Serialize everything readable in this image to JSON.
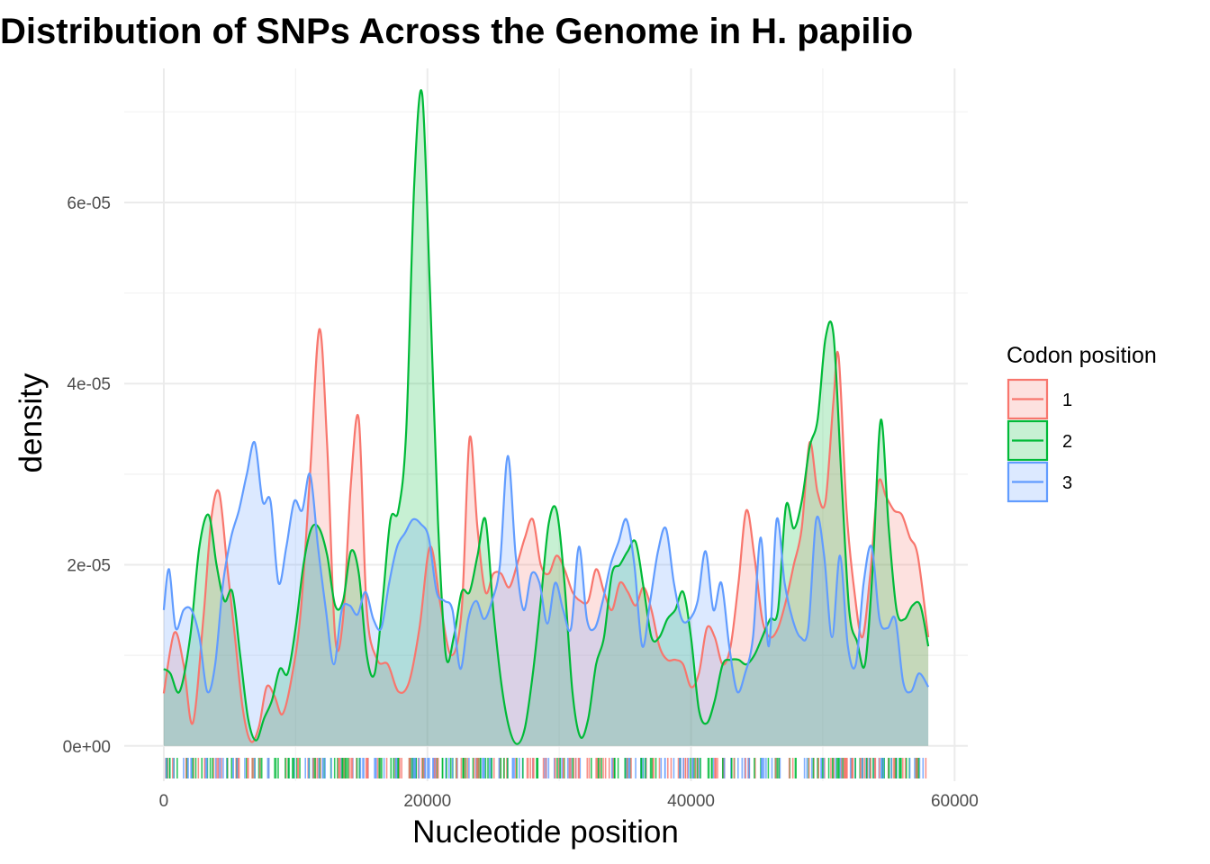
{
  "chart_data": {
    "type": "area",
    "title": "Distribution of SNPs Across the Genome in H. papilio",
    "xlabel": "Nucleotide position",
    "ylabel": "density",
    "xlim": [
      -3000,
      61000
    ],
    "ylim": [
      -3.9e-06,
      7.48e-05
    ],
    "x_ticks": [
      0,
      20000,
      40000,
      60000
    ],
    "x_tick_labels": [
      "0",
      "20000",
      "40000",
      "60000"
    ],
    "y_ticks": [
      0,
      2e-05,
      4e-05,
      6e-05
    ],
    "y_tick_labels": [
      "0e+00",
      "2e-05",
      "4e-05",
      "6e-05"
    ],
    "grid": true,
    "rug": true,
    "legend": {
      "title": "Codon position",
      "placement": "right",
      "entries": [
        "1",
        "2",
        "3"
      ]
    },
    "series": [
      {
        "name": "1",
        "color": "#F8766D",
        "x": [
          0,
          800,
          1500,
          2200,
          3000,
          3600,
          4200,
          4800,
          5400,
          6000,
          6600,
          7200,
          7800,
          8400,
          9000,
          9700,
          10400,
          11100,
          11800,
          12400,
          13000,
          13600,
          14200,
          14800,
          15400,
          16200,
          17000,
          17800,
          18600,
          19400,
          20200,
          21000,
          21800,
          22600,
          23200,
          23800,
          24400,
          25000,
          25600,
          26200,
          26800,
          27400,
          28000,
          28600,
          29200,
          29800,
          30400,
          31000,
          31600,
          32200,
          32800,
          33400,
          34000,
          34600,
          35200,
          35800,
          36400,
          37000,
          37600,
          38200,
          38800,
          39400,
          40000,
          40600,
          41200,
          41800,
          42400,
          43000,
          43600,
          44200,
          44800,
          45400,
          46000,
          46600,
          47200,
          47800,
          48400,
          49000,
          49600,
          50200,
          50800,
          51200,
          51800,
          52400,
          53000,
          53600,
          54200,
          54800,
          55400,
          56000,
          56600,
          57200,
          58000
        ],
        "y": [
          5.8e-06,
          1.25e-05,
          9e-06,
          2.5e-06,
          1.4e-05,
          2.5e-05,
          2.8e-05,
          2e-05,
          1.2e-05,
          4e-06,
          5e-07,
          2e-06,
          6.5e-06,
          5.5e-06,
          3.5e-06,
          7.5e-06,
          1.5e-05,
          3e-05,
          4.6e-05,
          3.3e-05,
          1.2e-05,
          1.4e-05,
          2.9e-05,
          3.6e-05,
          1.5e-05,
          9.5e-06,
          9e-06,
          6e-06,
          7e-06,
          1.3e-05,
          2.2e-05,
          1.55e-05,
          1e-05,
          1.5e-05,
          3.4e-05,
          2.4e-05,
          1.7e-05,
          1.9e-05,
          1.9e-05,
          1.75e-05,
          2e-05,
          2.3e-05,
          2.5e-05,
          2e-05,
          1.9e-05,
          2.1e-05,
          1.95e-05,
          1.7e-05,
          1.6e-05,
          1.6e-05,
          1.95e-05,
          1.7e-05,
          1.5e-05,
          1.8e-05,
          1.7e-05,
          1.55e-05,
          1.75e-05,
          1.5e-05,
          1.1e-05,
          9.5e-06,
          9.5e-06,
          9e-06,
          6.5e-06,
          8e-06,
          1.3e-05,
          1.2e-05,
          9e-06,
          1.1e-05,
          1.8e-05,
          2.6e-05,
          2.1e-05,
          1.4e-05,
          1.2e-05,
          1.3e-05,
          1.6e-05,
          2e-05,
          2.4e-05,
          3.35e-05,
          2.8e-05,
          2.7e-05,
          3.8e-05,
          4.3e-05,
          2.6e-05,
          1.7e-05,
          1.2e-05,
          1.9e-05,
          2.9e-05,
          2.75e-05,
          2.6e-05,
          2.55e-05,
          2.3e-05,
          2.1e-05,
          1.2e-05
        ]
      },
      {
        "name": "2",
        "color": "#00BA38",
        "x": [
          0,
          500,
          1200,
          2000,
          2700,
          3400,
          4000,
          4600,
          5200,
          5800,
          6400,
          7000,
          7600,
          8200,
          8800,
          9400,
          10000,
          10600,
          11200,
          11800,
          12400,
          13000,
          13600,
          14200,
          14800,
          15400,
          16000,
          16600,
          17200,
          17800,
          18400,
          19000,
          19600,
          20200,
          20800,
          21400,
          22000,
          22600,
          23200,
          23800,
          24400,
          25000,
          25600,
          26200,
          26800,
          27400,
          28000,
          28600,
          29200,
          29800,
          30400,
          31000,
          31600,
          32200,
          32800,
          33400,
          34000,
          34600,
          35200,
          35800,
          36400,
          37000,
          37600,
          38200,
          38800,
          39400,
          40000,
          40600,
          41200,
          41800,
          42400,
          43000,
          43600,
          44200,
          44800,
          45400,
          46000,
          46600,
          47200,
          47800,
          48400,
          49000,
          49600,
          50200,
          50800,
          51400,
          52000,
          52600,
          53200,
          53800,
          54400,
          55000,
          55600,
          56200,
          56800,
          57400,
          58000
        ],
        "y": [
          8.5e-06,
          8e-06,
          6e-06,
          1.2e-05,
          2.2e-05,
          2.55e-05,
          2e-05,
          1.6e-05,
          1.7e-05,
          1e-05,
          3e-06,
          6e-07,
          3e-06,
          5e-06,
          8.5e-06,
          8e-06,
          1.3e-05,
          2e-05,
          2.4e-05,
          2.4e-05,
          2.1e-05,
          1.55e-05,
          1.6e-05,
          2.15e-05,
          1.9e-05,
          1e-05,
          8e-06,
          1.6e-05,
          2.5e-05,
          2.6e-05,
          3.5e-05,
          6.2e-05,
          7.2e-05,
          5e-05,
          2.5e-05,
          1e-05,
          1.2e-05,
          1.7e-05,
          1.7e-05,
          2.1e-05,
          2.5e-05,
          1.5e-05,
          7e-06,
          2e-06,
          2e-07,
          2e-06,
          8e-06,
          1.6e-05,
          2.45e-05,
          2.6e-05,
          1.8e-05,
          6e-06,
          1e-06,
          3e-06,
          9e-06,
          1.2e-05,
          1.9e-05,
          2e-05,
          2.15e-05,
          2.25e-05,
          1.75e-05,
          1.2e-05,
          1.2e-05,
          1.4e-05,
          1.5e-05,
          1.7e-05,
          1.2e-05,
          4e-06,
          2.5e-06,
          5e-06,
          9e-06,
          9.5e-06,
          9.5e-06,
          9e-06,
          1e-05,
          1.2e-05,
          1.4e-05,
          1.5e-05,
          2.65e-05,
          2.4e-05,
          2.7e-05,
          3.3e-05,
          3.6e-05,
          4.5e-05,
          4.55e-05,
          3e-05,
          1.5e-05,
          1.15e-05,
          9e-06,
          2e-05,
          3.6e-05,
          2.4e-05,
          1.5e-05,
          1.4e-05,
          1.55e-05,
          1.55e-05,
          1.1e-05
        ]
      },
      {
        "name": "3",
        "color": "#619CFF",
        "x": [
          0,
          400,
          900,
          1500,
          2100,
          2700,
          3300,
          3900,
          4500,
          5100,
          5700,
          6300,
          6900,
          7500,
          8100,
          8700,
          9300,
          9900,
          10500,
          11100,
          11700,
          12300,
          12900,
          13500,
          14100,
          14700,
          15300,
          15900,
          16500,
          17100,
          17700,
          18300,
          18900,
          19500,
          20100,
          20700,
          21300,
          21900,
          22500,
          23100,
          23700,
          24300,
          24900,
          25500,
          26100,
          26700,
          27300,
          27900,
          28500,
          29100,
          29700,
          30300,
          30900,
          31500,
          32100,
          32700,
          33300,
          33900,
          34500,
          35100,
          35700,
          36300,
          36900,
          37500,
          38100,
          38700,
          39300,
          39900,
          40500,
          41100,
          41700,
          42300,
          42900,
          43500,
          44100,
          44700,
          45300,
          45900,
          46500,
          47100,
          47700,
          48300,
          48900,
          49500,
          50100,
          50700,
          51300,
          51900,
          52500,
          53100,
          53700,
          54300,
          54900,
          55500,
          56100,
          56700,
          57300,
          58000
        ],
        "y": [
          1.5e-05,
          1.95e-05,
          1.3e-05,
          1.5e-05,
          1.5e-05,
          1.2e-05,
          6e-06,
          9e-06,
          1.8e-05,
          2.3e-05,
          2.6e-05,
          3e-05,
          3.35e-05,
          2.7e-05,
          2.7e-05,
          1.8e-05,
          2.2e-05,
          2.7e-05,
          2.6e-05,
          3e-05,
          2.2e-05,
          1.5e-05,
          9e-06,
          1.5e-05,
          1.55e-05,
          1.45e-05,
          1.7e-05,
          1.4e-05,
          1.3e-05,
          1.8e-05,
          2.2e-05,
          2.35e-05,
          2.5e-05,
          2.45e-05,
          2.3e-05,
          1.7e-05,
          1.6e-05,
          1.5e-05,
          8.5e-06,
          1.4e-05,
          1.6e-05,
          1.4e-05,
          1.6e-05,
          2e-05,
          3.2e-05,
          2.1e-05,
          1.5e-05,
          1.9e-05,
          1.8e-05,
          1.35e-05,
          1.8e-05,
          1.5e-05,
          1.3e-05,
          2.2e-05,
          1.4e-05,
          1.3e-05,
          1.6e-05,
          2e-05,
          2.25e-05,
          2.5e-05,
          2e-05,
          1.1e-05,
          1.6e-05,
          2.15e-05,
          2.4e-05,
          1.8e-05,
          1.4e-05,
          1.4e-05,
          1.6e-05,
          2.15e-05,
          1.5e-05,
          1.8e-05,
          1.1e-05,
          6e-06,
          8e-06,
          1.2e-05,
          2.3e-05,
          1.1e-05,
          2.5e-05,
          1.8e-05,
          1.4e-05,
          1.2e-05,
          1.3e-05,
          2.5e-05,
          2.1e-05,
          1.2e-05,
          2.1e-05,
          1.1e-05,
          9e-06,
          1.8e-05,
          2.2e-05,
          1.4e-05,
          1.3e-05,
          1.4e-05,
          7e-06,
          6e-06,
          8e-06,
          6.5e-06
        ]
      }
    ]
  }
}
